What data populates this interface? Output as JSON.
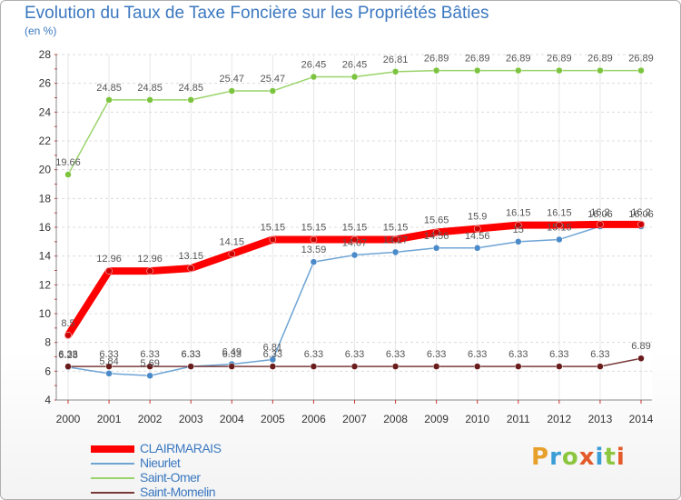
{
  "title": "Evolution du Taux de Taxe Foncière sur les Propriétés Bâties",
  "unit": "(en %)",
  "logo": {
    "text": "Proxiti",
    "colors": [
      "#e8a02c",
      "#3b9dd6",
      "#8cc63f",
      "#e45a2a",
      "#3b9dd6",
      "#8cc63f",
      "#e45a2a"
    ]
  },
  "chart_data": {
    "type": "line",
    "title": "Evolution du Taux de Taxe Foncière sur les Propriétés Bâties",
    "ylabel": "(en %)",
    "xlabel": "",
    "ylim": [
      4,
      28
    ],
    "yticks": [
      4,
      6,
      8,
      10,
      12,
      14,
      16,
      18,
      20,
      22,
      24,
      26,
      28
    ],
    "categories": [
      "2000",
      "2001",
      "2002",
      "2003",
      "2004",
      "2005",
      "2006",
      "2007",
      "2008",
      "2009",
      "2010",
      "2011",
      "2012",
      "2013",
      "2014"
    ],
    "series": [
      {
        "name": "CLAIRMARAIS",
        "color": "#ff0000",
        "marker": "#cc0000",
        "width": 8,
        "values": [
          8.5,
          12.96,
          12.96,
          13.15,
          14.15,
          15.15,
          15.15,
          15.15,
          15.15,
          15.65,
          15.9,
          16.15,
          16.15,
          16.2,
          16.2
        ],
        "labels": [
          "8.5",
          "12.96",
          "12.96",
          "13.15",
          "14.15",
          "15.15",
          "15.15",
          "15.15",
          "15.15",
          "15.65",
          "15.9",
          "16.15",
          "16.15",
          "16.2",
          "16.2"
        ]
      },
      {
        "name": "Nieurlet",
        "color": "#6ea4d4",
        "marker": "#4a8ac8",
        "width": 1.5,
        "values": [
          6.28,
          5.84,
          5.69,
          6.33,
          6.49,
          6.81,
          13.59,
          14.07,
          14.27,
          14.56,
          14.56,
          15.0,
          15.15,
          16.06,
          16.06
        ],
        "labels": [
          "6.28",
          "5.84",
          "5.69",
          "6.33",
          "6.49",
          "6.81",
          "13.59",
          "14.07",
          "14.27",
          "14.56",
          "14.56",
          "15",
          "15.15",
          "16.06",
          "16.06"
        ]
      },
      {
        "name": "Saint-Omer",
        "color": "#9ad46a",
        "marker": "#7cc43f",
        "width": 1.5,
        "values": [
          19.66,
          24.85,
          24.85,
          24.85,
          25.47,
          25.47,
          26.45,
          26.45,
          26.81,
          26.89,
          26.89,
          26.89,
          26.89,
          26.89,
          26.89
        ],
        "labels": [
          "19.66",
          "24.85",
          "24.85",
          "24.85",
          "25.47",
          "25.47",
          "26.45",
          "26.45",
          "26.81",
          "26.89",
          "26.89",
          "26.89",
          "26.89",
          "26.89",
          "26.89"
        ]
      },
      {
        "name": "Saint-Momelin",
        "color": "#7a3a3a",
        "marker": "#6a1c1c",
        "width": 1.5,
        "values": [
          6.33,
          6.33,
          6.33,
          6.33,
          6.33,
          6.33,
          6.33,
          6.33,
          6.33,
          6.33,
          6.33,
          6.33,
          6.33,
          6.33,
          6.89
        ],
        "labels": [
          "6.33",
          "6.33",
          "6.33",
          "6.33",
          "6.33",
          "6.33",
          "6.33",
          "6.33",
          "6.33",
          "6.33",
          "6.33",
          "6.33",
          "6.33",
          "6.33",
          "6.89"
        ]
      }
    ]
  }
}
